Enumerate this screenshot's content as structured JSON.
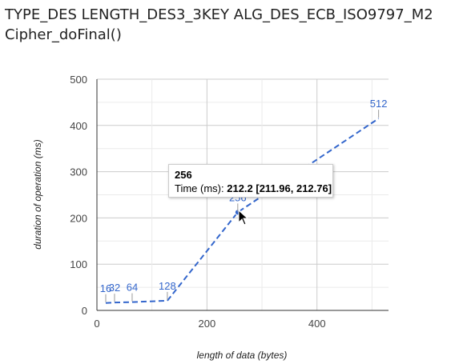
{
  "header": {
    "title_line1": "TYPE_DES LENGTH_DES3_3KEY ALG_DES_ECB_ISO9797_M2",
    "title_line2": "Cipher_doFinal()"
  },
  "chart_data": {
    "type": "line",
    "xlabel": "length of data (bytes)",
    "ylabel": "duration of operation (ms)",
    "xlim": [
      0,
      530
    ],
    "ylim": [
      0,
      500
    ],
    "x_ticks": [
      0,
      200,
      400
    ],
    "y_ticks": [
      0,
      100,
      200,
      300,
      400,
      500
    ],
    "grid": true,
    "series": [
      {
        "color": "#3366cc",
        "line_style": "dashed",
        "points": [
          {
            "x": 16,
            "y": 16,
            "label": "16"
          },
          {
            "x": 32,
            "y": 17,
            "label": "32"
          },
          {
            "x": 64,
            "y": 18,
            "label": "64"
          },
          {
            "x": 128,
            "y": 21,
            "label": "128"
          },
          {
            "x": 256,
            "y": 212.2,
            "label": "256"
          },
          {
            "x": 512,
            "y": 415,
            "label": "512"
          }
        ]
      }
    ],
    "tooltip": {
      "category": "256",
      "label": "Time (ms): ",
      "value": "212.2 [211.96, 212.76]"
    }
  }
}
